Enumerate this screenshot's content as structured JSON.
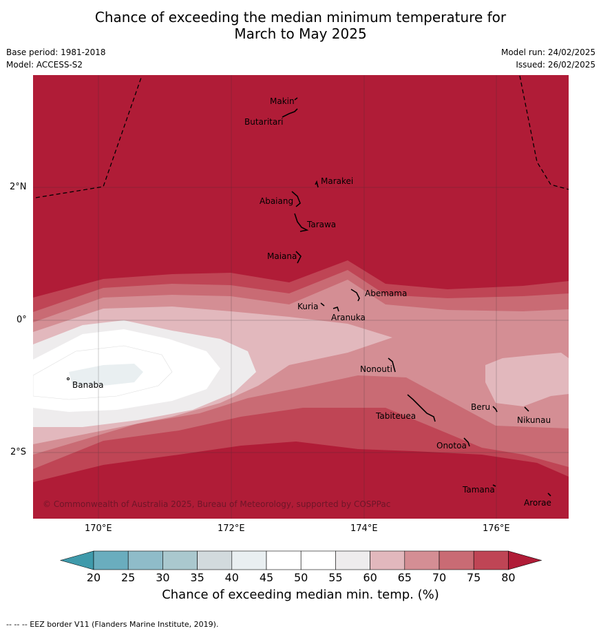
{
  "title_line1": "Chance of exceeding the median minimum temperature for",
  "title_line2": "March to May 2025",
  "base_period": "Base period: 1981-2018",
  "model": "Model: ACCESS-S2",
  "model_run": "Model run: 24/02/2025",
  "issued": "Issued: 26/02/2025",
  "copyright": "© Commonwealth of Australia 2025, Bureau of Meteorology, supported by COSPPac",
  "lat_ticks": [
    "2°N",
    "0°",
    "2°S"
  ],
  "lon_ticks": [
    "170°E",
    "172°E",
    "174°E",
    "176°E"
  ],
  "islands": [
    "Makin",
    "Butaritari",
    "Marakei",
    "Abaiang",
    "Tarawa",
    "Maiana",
    "Abemama",
    "Kuria",
    "Aranuka",
    "Banaba",
    "Nonouti",
    "Tabiteuea",
    "Beru",
    "Nikunau",
    "Onotoa",
    "Tamana",
    "Arorae"
  ],
  "colorbar": {
    "labels": [
      "20",
      "25",
      "30",
      "35",
      "40",
      "45",
      "50",
      "55",
      "60",
      "65",
      "70",
      "75",
      "80"
    ],
    "colors": [
      "#3f9aab",
      "#6aadbe",
      "#8fbcc9",
      "#aac8ce",
      "#d2dadd",
      "#e9eff1",
      "#ffffff",
      "#ffffff",
      "#eeeced",
      "#e2b8bd",
      "#d48e94",
      "#c96b74",
      "#bf4555",
      "#b01c37"
    ],
    "title": "Chance of exceeding median min. temp. (%)"
  },
  "footer": "--  --  -- EEZ border V11 (Flanders Marine Institute, 2019)."
}
